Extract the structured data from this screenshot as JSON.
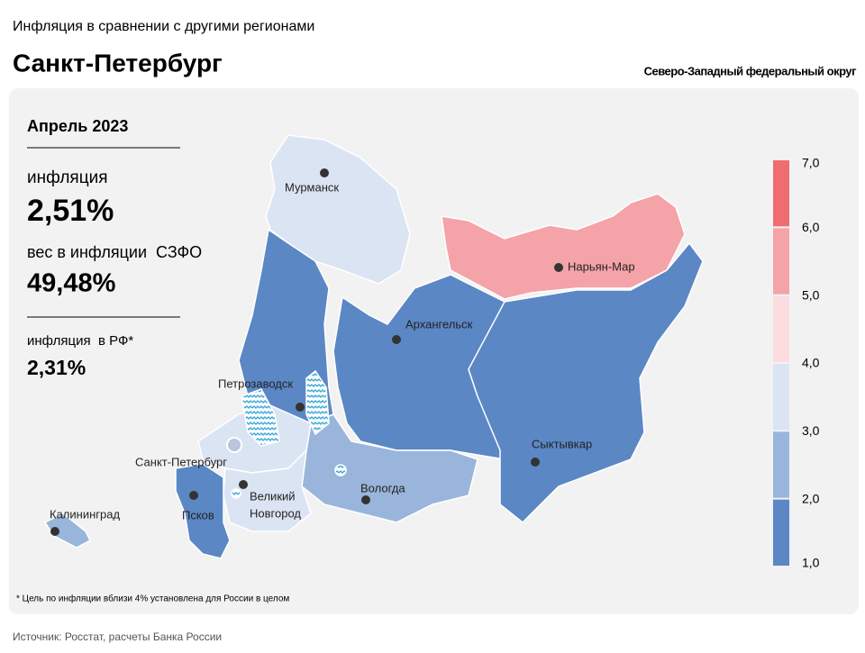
{
  "header": {
    "title": "Инфляция в сравнении с другими регионами",
    "region": "Санкт-Петербург",
    "district": "Северо-Западный федеральный округ"
  },
  "panel": {
    "period": "Апрель 2023",
    "inflation_label": "инфляция",
    "inflation_value": "2,51%",
    "weight_label": "вес в инфляции  СЗФО",
    "weight_value": "49,48%",
    "rf_label": "инфляция  в РФ*",
    "rf_value": "2,31%"
  },
  "map": {
    "cities": [
      "Мурманск",
      "Нарьян-Мар",
      "Архангельск",
      "Петрозаводск",
      "Сыктывкар",
      "Санкт-Петербург",
      "Великий",
      "Новгород",
      "Вологда",
      "Калининград",
      "Псков"
    ]
  },
  "legend": {
    "ticks": [
      {
        "value": 1,
        "label": "1,0"
      },
      {
        "value": 2,
        "label": "2,0"
      },
      {
        "value": 3,
        "label": "3,0"
      },
      {
        "value": 4,
        "label": "4,0"
      },
      {
        "value": 5,
        "label": "5,0"
      },
      {
        "value": 6,
        "label": "6,0"
      },
      {
        "value": 7,
        "label": "7,0"
      }
    ],
    "colors": [
      "#5b87c5",
      "#9ab5db",
      "#dbe4f3",
      "#fbdde0",
      "#f4a3a8",
      "#ef6c70"
    ]
  },
  "footnote": "* Цель по инфляции вблизи 4% установлена для России в целом",
  "source": "Источник: Росстат, расчеты Банка России"
}
